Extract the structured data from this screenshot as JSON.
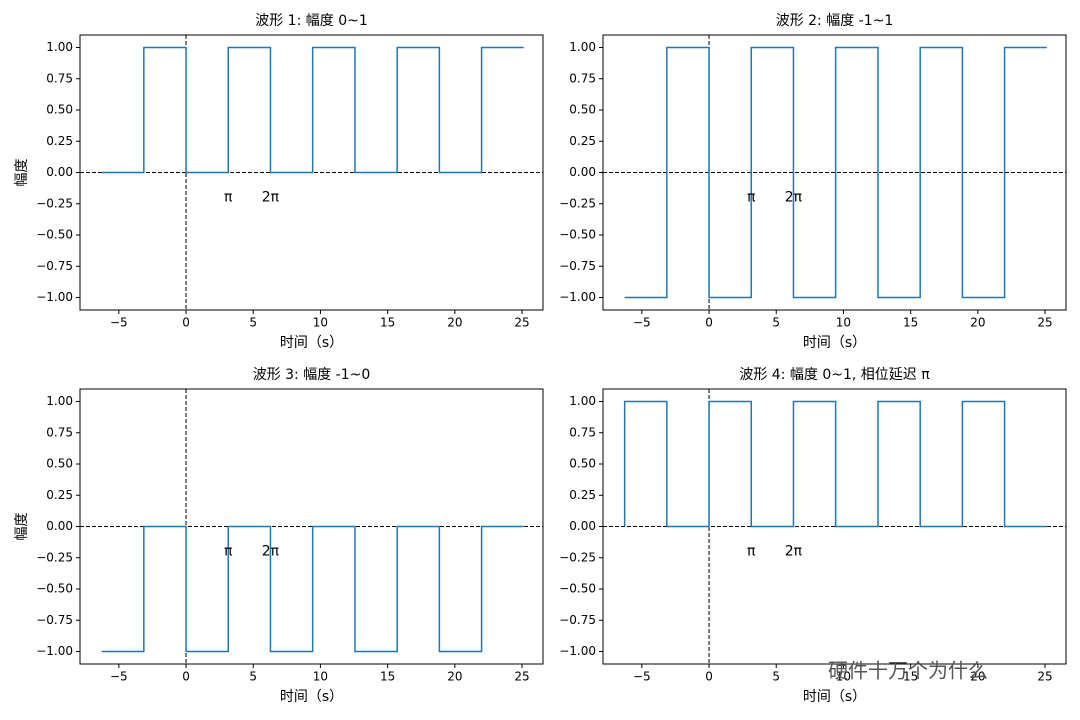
{
  "chart_data": [
    {
      "type": "line",
      "title": "波形 1: 幅度 0~1",
      "xlabel": "时间（s）",
      "ylabel": "幅度",
      "color": "#1f77b4",
      "x": [
        -6.28,
        -3.14,
        -3.14,
        0,
        0,
        3.14,
        3.14,
        6.28,
        6.28,
        9.42,
        9.42,
        12.57,
        12.57,
        15.71,
        15.71,
        18.85,
        18.85,
        21.99,
        21.99,
        25.13
      ],
      "values": [
        0,
        0,
        1,
        1,
        0,
        0,
        1,
        1,
        0,
        0,
        1,
        1,
        0,
        0,
        1,
        1,
        0,
        0,
        1,
        1
      ],
      "xlim": [
        -7.89,
        26.56
      ],
      "ylim": [
        -1.1,
        1.1
      ],
      "xticks": [
        {
          "value": -5,
          "label": "−5"
        },
        0,
        5,
        10,
        15,
        20,
        25
      ],
      "yticks": [
        {
          "value": -1,
          "label": "−1.00"
        },
        {
          "value": -0.75,
          "label": "−0.75"
        },
        {
          "value": -0.5,
          "label": "−0.50"
        },
        {
          "value": -0.25,
          "label": "−0.25"
        },
        {
          "value": 0,
          "label": "0.00"
        },
        {
          "value": 0.25,
          "label": "0.25"
        },
        {
          "value": 0.5,
          "label": "0.50"
        },
        {
          "value": 0.75,
          "label": "0.75"
        },
        {
          "value": 1,
          "label": "1.00"
        }
      ],
      "hlines": [
        0
      ],
      "vlines": [
        0
      ],
      "annotations": [
        {
          "text": "π",
          "x": 3.14,
          "y": -0.2
        },
        {
          "text": "2π",
          "x": 6.28,
          "y": -0.2
        }
      ]
    },
    {
      "type": "line",
      "title": "波形 2: 幅度 -1~1",
      "xlabel": "时间（s）",
      "color": "#1f77b4",
      "x": [
        -6.28,
        -3.14,
        -3.14,
        0,
        0,
        3.14,
        3.14,
        6.28,
        6.28,
        9.42,
        9.42,
        12.57,
        12.57,
        15.71,
        15.71,
        18.85,
        18.85,
        21.99,
        21.99,
        25.13
      ],
      "values": [
        -1,
        -1,
        1,
        1,
        -1,
        -1,
        1,
        1,
        -1,
        -1,
        1,
        1,
        -1,
        -1,
        1,
        1,
        -1,
        -1,
        1,
        1
      ],
      "xlim": [
        -7.89,
        26.56
      ],
      "ylim": [
        -1.1,
        1.1
      ],
      "xticks": [
        {
          "value": -5,
          "label": "−5"
        },
        0,
        5,
        10,
        15,
        20,
        25
      ],
      "yticks": [
        {
          "value": -1,
          "label": "−1.00"
        },
        {
          "value": -0.75,
          "label": "−0.75"
        },
        {
          "value": -0.5,
          "label": "−0.50"
        },
        {
          "value": -0.25,
          "label": "−0.25"
        },
        {
          "value": 0,
          "label": "0.00"
        },
        {
          "value": 0.25,
          "label": "0.25"
        },
        {
          "value": 0.5,
          "label": "0.50"
        },
        {
          "value": 0.75,
          "label": "0.75"
        },
        {
          "value": 1,
          "label": "1.00"
        }
      ],
      "hlines": [
        0
      ],
      "vlines": [
        0
      ],
      "annotations": [
        {
          "text": "π",
          "x": 3.14,
          "y": -0.2
        },
        {
          "text": "2π",
          "x": 6.28,
          "y": -0.2
        }
      ]
    },
    {
      "type": "line",
      "title": "波形 3: 幅度 -1~0",
      "xlabel": "时间（s）",
      "ylabel": "幅度",
      "color": "#1f77b4",
      "x": [
        -6.28,
        -3.14,
        -3.14,
        0,
        0,
        3.14,
        3.14,
        6.28,
        6.28,
        9.42,
        9.42,
        12.57,
        12.57,
        15.71,
        15.71,
        18.85,
        18.85,
        21.99,
        21.99,
        25.13
      ],
      "values": [
        -1,
        -1,
        0,
        0,
        -1,
        -1,
        0,
        0,
        -1,
        -1,
        0,
        0,
        -1,
        -1,
        0,
        0,
        -1,
        -1,
        0,
        0
      ],
      "xlim": [
        -7.89,
        26.56
      ],
      "ylim": [
        -1.1,
        1.1
      ],
      "xticks": [
        {
          "value": -5,
          "label": "−5"
        },
        0,
        5,
        10,
        15,
        20,
        25
      ],
      "yticks": [
        {
          "value": -1,
          "label": "−1.00"
        },
        {
          "value": -0.75,
          "label": "−0.75"
        },
        {
          "value": -0.5,
          "label": "−0.50"
        },
        {
          "value": -0.25,
          "label": "−0.25"
        },
        {
          "value": 0,
          "label": "0.00"
        },
        {
          "value": 0.25,
          "label": "0.25"
        },
        {
          "value": 0.5,
          "label": "0.50"
        },
        {
          "value": 0.75,
          "label": "0.75"
        },
        {
          "value": 1,
          "label": "1.00"
        }
      ],
      "hlines": [
        0
      ],
      "vlines": [
        0
      ],
      "annotations": [
        {
          "text": "π",
          "x": 3.14,
          "y": -0.2
        },
        {
          "text": "2π",
          "x": 6.28,
          "y": -0.2
        }
      ]
    },
    {
      "type": "line",
      "title": "波形 4: 幅度 0~1, 相位延迟 π",
      "xlabel": "时间（s）",
      "color": "#1f77b4",
      "x": [
        -6.28,
        -6.28,
        -3.14,
        -3.14,
        0,
        0,
        3.14,
        3.14,
        6.28,
        6.28,
        9.42,
        9.42,
        12.57,
        12.57,
        15.71,
        15.71,
        18.85,
        18.85,
        21.99,
        21.99,
        25.13
      ],
      "values": [
        0,
        1,
        1,
        0,
        0,
        1,
        1,
        0,
        0,
        1,
        1,
        0,
        0,
        1,
        1,
        0,
        0,
        1,
        1,
        0,
        0
      ],
      "xlim": [
        -7.89,
        26.56
      ],
      "ylim": [
        -1.1,
        1.1
      ],
      "xticks": [
        {
          "value": -5,
          "label": "−5"
        },
        0,
        5,
        10,
        15,
        20,
        25
      ],
      "yticks": [
        {
          "value": -1,
          "label": "−1.00"
        },
        {
          "value": -0.75,
          "label": "−0.75"
        },
        {
          "value": -0.5,
          "label": "−0.50"
        },
        {
          "value": -0.25,
          "label": "−0.25"
        },
        {
          "value": 0,
          "label": "0.00"
        },
        {
          "value": 0.25,
          "label": "0.25"
        },
        {
          "value": 0.5,
          "label": "0.50"
        },
        {
          "value": 0.75,
          "label": "0.75"
        },
        {
          "value": 1,
          "label": "1.00"
        }
      ],
      "hlines": [
        0
      ],
      "vlines": [
        0
      ],
      "annotations": [
        {
          "text": "π",
          "x": 3.14,
          "y": -0.2
        },
        {
          "text": "2π",
          "x": 6.28,
          "y": -0.2
        }
      ]
    }
  ],
  "watermark": "硬件十万个为什么"
}
